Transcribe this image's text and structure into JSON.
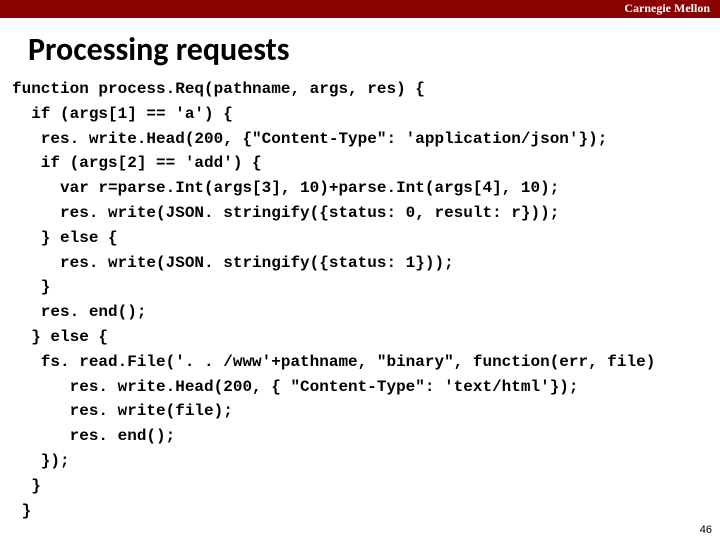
{
  "brand": "Carnegie Mellon",
  "title": "Processing requests",
  "code_lines": [
    "function process.Req(pathname, args, res) {",
    "  if (args[1] == 'a') {",
    "   res. write.Head(200, {\"Content-Type\": 'application/json'});",
    "   if (args[2] == 'add') {",
    "     var r=parse.Int(args[3], 10)+parse.Int(args[4], 10);",
    "     res. write(JSON. stringify({status: 0, result: r}));",
    "   } else {",
    "     res. write(JSON. stringify({status: 1}));",
    "   }",
    "   res. end();",
    "  } else {",
    "   fs. read.File('. . /www'+pathname, \"binary\", function(err, file) ",
    "      res. write.Head(200, { \"Content-Type\": 'text/html'});",
    "      res. write(file);",
    "      res. end();",
    "   });",
    "  }",
    " }"
  ],
  "page_number": "46",
  "colors": {
    "topbar": "#8b0000",
    "background": "#ffffff",
    "text": "#000000",
    "brand_text": "#ffffff"
  },
  "typography": {
    "title_fontsize": 32,
    "code_fontsize": 16,
    "code_fontfamily": "Courier New",
    "title_fontweight": "bold",
    "code_fontweight": "bold"
  }
}
